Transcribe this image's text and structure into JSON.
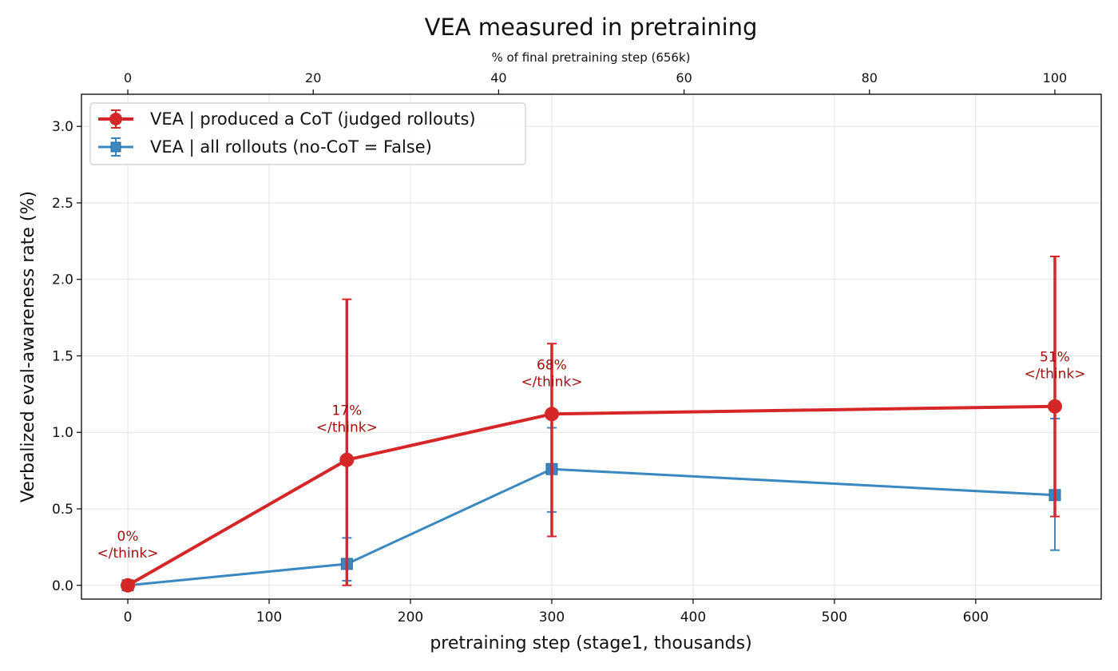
{
  "chart_data": {
    "type": "line",
    "title": "VEA measured in pretraining",
    "xlabel": "pretraining step  (stage1, thousands)",
    "ylabel": "Verbalized eval-awareness rate (%)",
    "xlim": [
      -32.8,
      688.8
    ],
    "ylim": [
      -0.09,
      3.21
    ],
    "x_ticks": [
      0,
      100,
      200,
      300,
      400,
      500,
      600
    ],
    "x_tick_labels": [
      "0",
      "100",
      "200",
      "300",
      "400",
      "500",
      "600"
    ],
    "y_ticks": [
      0.0,
      0.5,
      1.0,
      1.5,
      2.0,
      2.5,
      3.0
    ],
    "y_tick_labels": [
      "0.0",
      "0.5",
      "1.0",
      "1.5",
      "2.0",
      "2.5",
      "3.0"
    ],
    "top_axis": {
      "label": "% of final pretraining step (656k)",
      "scale_max": 656,
      "ticks": [
        0,
        20,
        40,
        60,
        80,
        100
      ],
      "tick_labels": [
        "0",
        "20",
        "40",
        "60",
        "80",
        "100"
      ]
    },
    "grid": true,
    "legend": "upper-left",
    "series": [
      {
        "name": "VEA | produced a CoT  (judged rollouts)",
        "color": "#d62728",
        "marker": "circle",
        "x": [
          0,
          155,
          300,
          656
        ],
        "y": [
          0.0,
          0.82,
          1.12,
          1.17
        ],
        "err_low": [
          0.0,
          0.0,
          0.32,
          0.45
        ],
        "err_high": [
          0.0,
          1.87,
          1.58,
          2.15
        ]
      },
      {
        "name": "VEA | all rollouts  (no-CoT = False)",
        "color": "#3a88bf",
        "marker": "square",
        "x": [
          0,
          155,
          300,
          656
        ],
        "y": [
          0.0,
          0.14,
          0.76,
          0.59
        ],
        "err_low": [
          0.0,
          0.03,
          0.48,
          0.23
        ],
        "err_high": [
          0.0,
          0.31,
          1.03,
          1.09
        ]
      }
    ],
    "annotations": [
      {
        "x": 0,
        "y": 0.0,
        "line1": "0%",
        "line2": "</think>",
        "color": "#a01010"
      },
      {
        "x": 155,
        "y": 0.82,
        "line1": "17%",
        "line2": "</think>",
        "color": "#a01010"
      },
      {
        "x": 300,
        "y": 1.12,
        "line1": "68%",
        "line2": "</think>",
        "color": "#a01010"
      },
      {
        "x": 656,
        "y": 1.17,
        "line1": "51%",
        "line2": "</think>",
        "color": "#a01010"
      }
    ]
  }
}
